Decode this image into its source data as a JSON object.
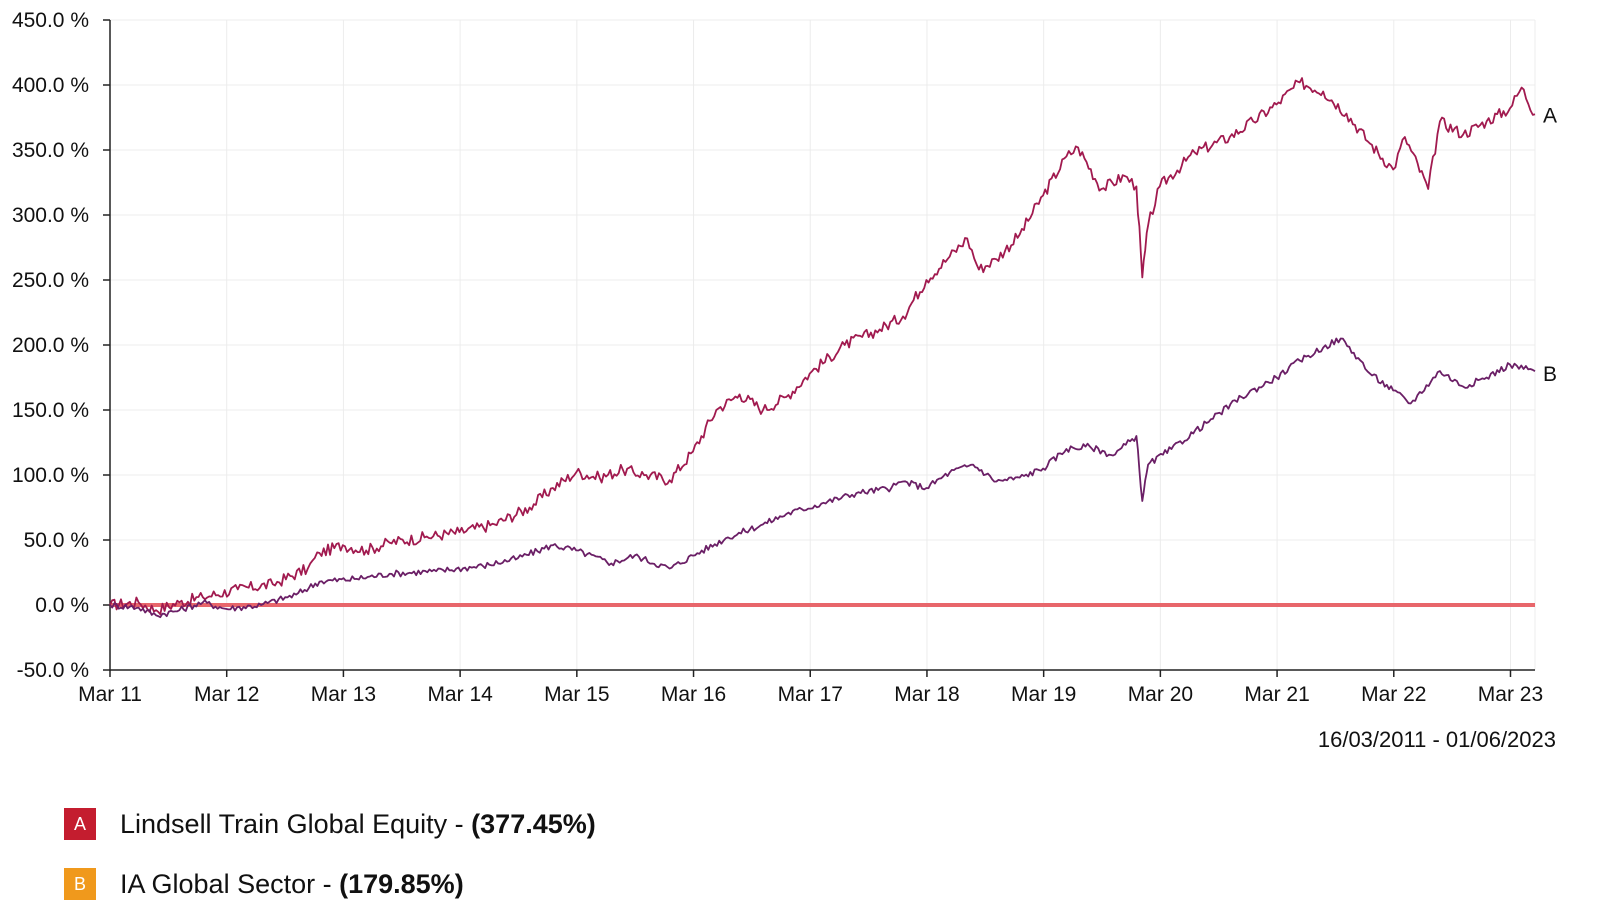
{
  "chart_data": {
    "type": "line",
    "y_tick_labels": [
      "450.0 %",
      "400.0 %",
      "350.0 %",
      "300.0 %",
      "250.0 %",
      "200.0 %",
      "150.0 %",
      "100.0 %",
      "50.0 %",
      "0.0 %",
      "-50.0 %"
    ],
    "ylim": [
      -50,
      450
    ],
    "y_ticks": [
      450,
      400,
      350,
      300,
      250,
      200,
      150,
      100,
      50,
      0,
      -50
    ],
    "x_tick_labels": [
      "Mar 11",
      "Mar 12",
      "Mar 13",
      "Mar 14",
      "Mar 15",
      "Mar 16",
      "Mar 17",
      "Mar 18",
      "Mar 19",
      "Mar 20",
      "Mar 21",
      "Mar 22",
      "Mar 23"
    ],
    "xlim": [
      2011.205,
      2023.415
    ],
    "x_ticks": [
      2011.205,
      2012.205,
      2013.205,
      2014.205,
      2015.205,
      2016.205,
      2017.205,
      2018.205,
      2019.205,
      2020.205,
      2021.205,
      2022.205,
      2023.205
    ],
    "date_range": "16/03/2011 - 01/06/2023",
    "grid": true,
    "baseline": {
      "value": 0,
      "color": "#e8666b"
    },
    "series": [
      {
        "key": "A",
        "name": "Lindsell Train Global Equity - ",
        "final": "(377.45%)",
        "color": "#a11a4f",
        "badge_color": "#c41d2f",
        "x": [
          2011.205,
          2011.45,
          2011.6,
          2011.8,
          2012.0,
          2012.3,
          2012.6,
          2012.9,
          2013.0,
          2013.2,
          2013.4,
          2013.6,
          2013.9,
          2014.2,
          2014.5,
          2014.8,
          2015.0,
          2015.2,
          2015.4,
          2015.6,
          2015.8,
          2016.0,
          2016.2,
          2016.4,
          2016.6,
          2016.8,
          2017.0,
          2017.2,
          2017.5,
          2017.8,
          2018.0,
          2018.2,
          2018.4,
          2018.55,
          2018.65,
          2018.8,
          2019.0,
          2019.2,
          2019.4,
          2019.5,
          2019.7,
          2019.9,
          2020.0,
          2020.05,
          2020.1,
          2020.2,
          2020.5,
          2020.8,
          2021.0,
          2021.2,
          2021.4,
          2021.6,
          2021.8,
          2022.0,
          2022.2,
          2022.3,
          2022.5,
          2022.6,
          2022.8,
          2023.0,
          2023.2,
          2023.3,
          2023.415
        ],
        "y": [
          0,
          2,
          -4,
          2,
          6,
          12,
          16,
          28,
          40,
          46,
          42,
          48,
          52,
          56,
          62,
          75,
          90,
          102,
          98,
          104,
          100,
          96,
          118,
          150,
          162,
          150,
          160,
          178,
          200,
          212,
          222,
          250,
          268,
          282,
          258,
          266,
          285,
          315,
          345,
          352,
          320,
          330,
          322,
          252,
          292,
          322,
          348,
          360,
          372,
          385,
          402,
          395,
          378,
          355,
          335,
          360,
          320,
          372,
          362,
          372,
          382,
          398,
          377.45
        ]
      },
      {
        "key": "B",
        "name": "IA Global Sector - ",
        "final": "(179.85%)",
        "color": "#6b1f66",
        "badge_color": "#f0991c",
        "x": [
          2011.205,
          2011.45,
          2011.6,
          2011.8,
          2012.0,
          2012.2,
          2012.5,
          2012.8,
          2013.0,
          2013.3,
          2013.6,
          2014.0,
          2014.4,
          2014.7,
          2015.0,
          2015.2,
          2015.5,
          2015.7,
          2016.0,
          2016.2,
          2016.5,
          2016.8,
          2017.0,
          2017.3,
          2017.6,
          2017.9,
          2018.0,
          2018.2,
          2018.4,
          2018.6,
          2018.8,
          2019.0,
          2019.2,
          2019.4,
          2019.6,
          2019.8,
          2020.0,
          2020.05,
          2020.1,
          2020.3,
          2020.6,
          2020.9,
          2021.2,
          2021.4,
          2021.6,
          2021.75,
          2021.9,
          2022.0,
          2022.2,
          2022.35,
          2022.6,
          2022.8,
          2023.0,
          2023.2,
          2023.415
        ],
        "y": [
          0,
          -2,
          -8,
          -4,
          2,
          -3,
          0,
          8,
          18,
          20,
          24,
          26,
          30,
          36,
          46,
          42,
          32,
          38,
          28,
          38,
          52,
          62,
          70,
          78,
          86,
          90,
          95,
          90,
          102,
          108,
          95,
          98,
          105,
          120,
          122,
          115,
          130,
          80,
          108,
          120,
          140,
          160,
          175,
          188,
          198,
          205,
          190,
          178,
          165,
          155,
          180,
          168,
          175,
          185,
          179.85
        ]
      }
    ]
  }
}
